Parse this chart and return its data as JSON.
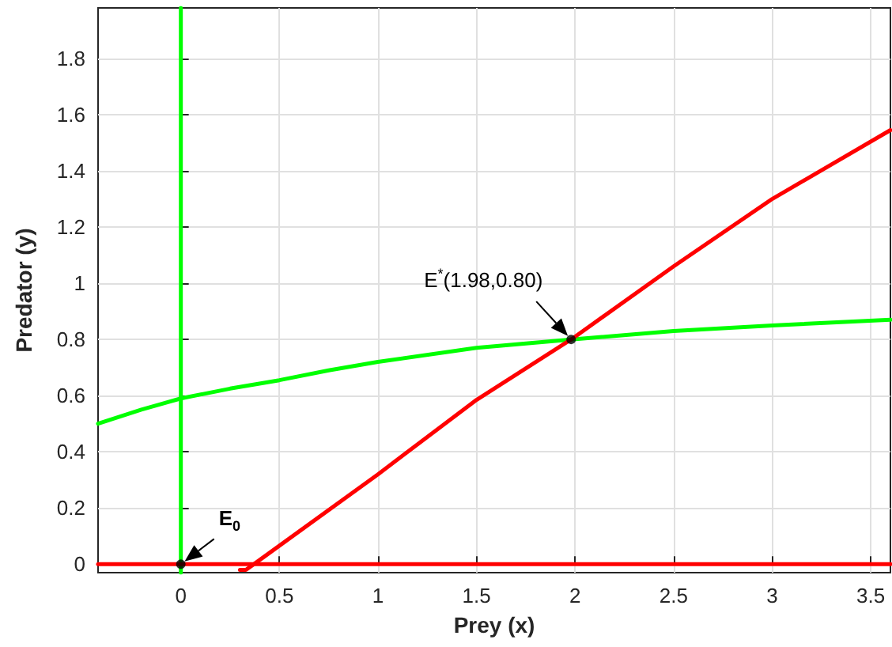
{
  "chart_data": {
    "type": "line",
    "xlabel": "Prey (x)",
    "ylabel": "Predator (y)",
    "xlim": [
      -0.42,
      3.6
    ],
    "xticks": [
      0,
      0.5,
      1,
      1.5,
      2,
      2.5,
      3,
      3.5
    ],
    "ylim": [
      -0.03,
      1.98
    ],
    "yticks": [
      0,
      0.2,
      0.4,
      0.6,
      0.8,
      1,
      1.2,
      1.4,
      1.6,
      1.8
    ],
    "grid": true,
    "line_style": "solid",
    "series": [
      {
        "color": "#00ff00",
        "x": [
          0,
          0
        ],
        "values": [
          -0.03,
          1.98
        ]
      },
      {
        "color": "#00ff00",
        "x": [
          -0.42,
          -0.2,
          0,
          0.25,
          0.5,
          0.75,
          1,
          1.5,
          1.98,
          2.5,
          3,
          3.6
        ],
        "values": [
          0.5,
          0.55,
          0.59,
          0.625,
          0.655,
          0.69,
          0.72,
          0.77,
          0.8,
          0.83,
          0.85,
          0.87
        ]
      },
      {
        "color": "#ff0000",
        "x": [
          -0.42,
          0.3,
          3.6
        ],
        "values": [
          0,
          0,
          0
        ]
      },
      {
        "color": "#ff0000",
        "x": [
          0.3,
          0.33,
          0.37,
          1,
          1.5,
          1.98,
          2.5,
          3,
          3.6
        ],
        "values": [
          -0.02,
          -0.02,
          0,
          0.32,
          0.585,
          0.8,
          1.06,
          1.3,
          1.545
        ]
      },
      {
        "type": "scatter",
        "marker": "circle",
        "color": "#000000",
        "x": [
          0,
          1.98
        ],
        "values": [
          0,
          0.8
        ]
      }
    ],
    "annotations": [
      {
        "text": "E$_{0}$",
        "x": 0,
        "y": 0
      },
      {
        "text": "E$^{*}$(1.98,0.80)",
        "x": 1.98,
        "y": 0.8
      }
    ]
  }
}
